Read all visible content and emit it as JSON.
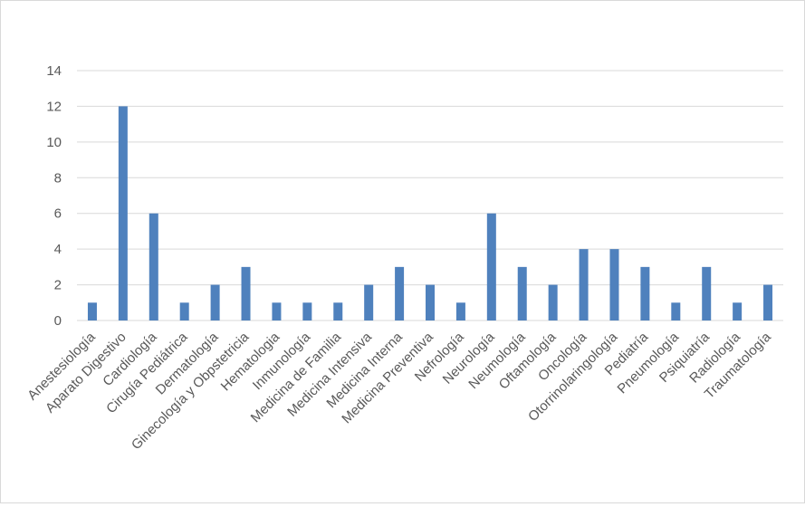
{
  "chart_data": {
    "type": "bar",
    "title": "",
    "xlabel": "",
    "ylabel": "",
    "ylim": [
      0,
      14
    ],
    "yticks": [
      "0",
      "2",
      "4",
      "6",
      "8",
      "10",
      "12",
      "14"
    ],
    "grid": true,
    "legend": "none",
    "bar_color": "#4f81bd",
    "grid_color": "#d9d9d9",
    "categories": [
      "Anestesiología",
      "Aparato Digestivo",
      "Cardiología",
      "Cirugía Pediátrica",
      "Dermatología",
      "Ginecología y Obpstetricia",
      "Hematologia",
      "Inmunología",
      "Medicina de Familia",
      "Medicina Intensiva",
      "Medicina Interna",
      "Medicina Preventiva",
      "Nefrología",
      "Neurología",
      "Neumología",
      "Oftamología",
      "Oncología",
      "Otorrinolaringología",
      "Pediatría",
      "Pneumología",
      "Psiquiatría",
      "Radiología",
      "Traumatología"
    ],
    "values": [
      1,
      12,
      6,
      1,
      2,
      3,
      1,
      1,
      1,
      2,
      3,
      2,
      1,
      6,
      3,
      2,
      4,
      4,
      3,
      1,
      3,
      1,
      2
    ]
  }
}
